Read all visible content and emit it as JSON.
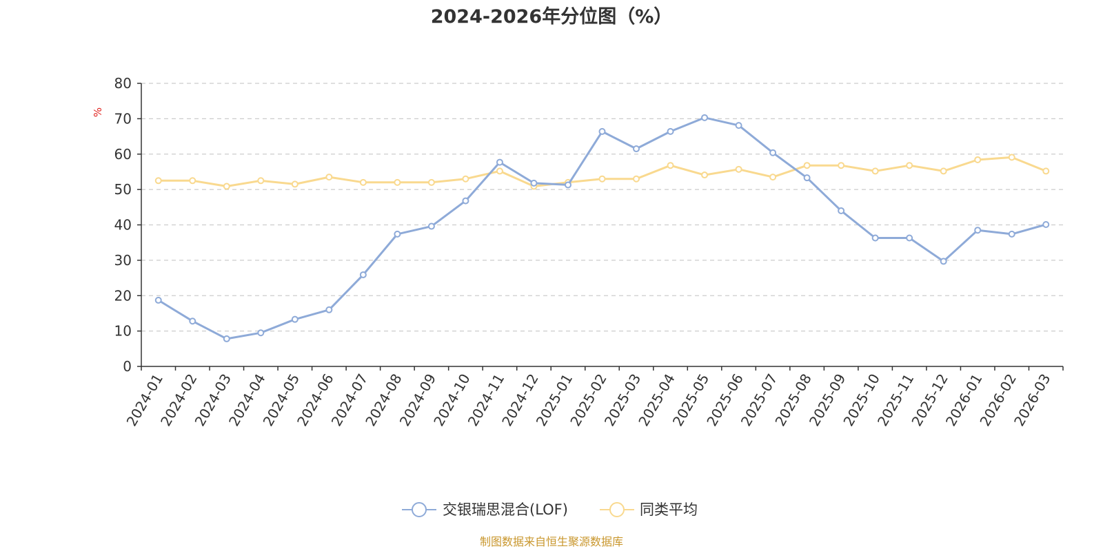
{
  "chart_data": {
    "type": "line",
    "title": "2024-2026年分位图（%）",
    "ylabel": "%",
    "ylim": [
      0,
      80
    ],
    "yticks": [
      0,
      10,
      20,
      30,
      40,
      50,
      60,
      70,
      80
    ],
    "grid": true,
    "legend_position": "bottom",
    "categories": [
      "2024-01",
      "2024-02",
      "2024-03",
      "2024-04",
      "2024-05",
      "2024-06",
      "2024-07",
      "2024-08",
      "2024-09",
      "2024-10",
      "2024-11",
      "2024-12",
      "2025-01",
      "2025-02",
      "2025-03",
      "2025-04",
      "2025-05",
      "2025-06",
      "2025-07",
      "2025-08",
      "2025-09",
      "2025-10",
      "2025-11",
      "2025-12",
      "2026-01",
      "2026-02",
      "2026-03"
    ],
    "series": [
      {
        "name": "交银瑞思混合(LOF)",
        "color": "#8eaad8",
        "values": [
          18.7,
          12.8,
          7.8,
          9.5,
          13.3,
          16.0,
          25.9,
          37.4,
          39.6,
          46.8,
          57.7,
          51.8,
          51.3,
          66.4,
          61.5,
          66.4,
          70.3,
          68.1,
          60.4,
          53.3,
          44.0,
          36.3,
          36.3,
          29.7,
          38.5,
          37.4,
          40.1
        ]
      },
      {
        "name": "同类平均",
        "color": "#f9d98f",
        "values": [
          52.5,
          52.5,
          50.9,
          52.5,
          51.5,
          53.5,
          52.0,
          52.0,
          52.0,
          53.0,
          55.2,
          50.9,
          52.0,
          53.0,
          53.0,
          56.8,
          54.1,
          55.7,
          53.5,
          56.8,
          56.8,
          55.2,
          56.8,
          55.2,
          58.4,
          59.1,
          55.2
        ]
      }
    ]
  },
  "source_text": "制图数据来自恒生聚源数据库"
}
